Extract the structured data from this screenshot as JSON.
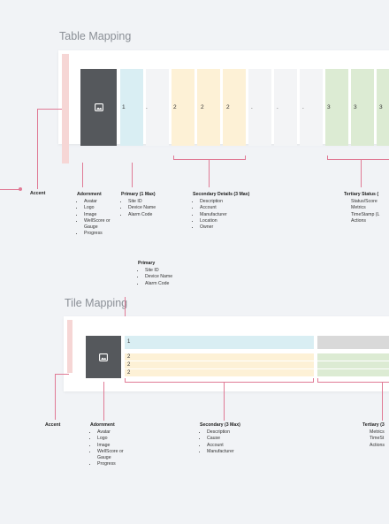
{
  "table_section": {
    "title": "Table Mapping",
    "cells": {
      "primary": "1",
      "blank_a": ".",
      "sec1": "2",
      "sec2": "2",
      "sec3": "2",
      "blank_b": ".",
      "blank_c": ".",
      "blank_d": ".",
      "ter1": "3",
      "ter2": "3",
      "ter3": "3"
    },
    "accent_label": "Accent",
    "adornment": {
      "title": "Adornment",
      "items": [
        "Avatar",
        "Logo",
        "Image",
        "WellScore or Gauge",
        "Progress"
      ]
    },
    "primary": {
      "title": "Primary (1 Max)",
      "items": [
        "Site ID",
        "Device Name",
        "Alarm Code"
      ]
    },
    "secondary": {
      "title": "Secondary Details (3 Max)",
      "items": [
        "Description",
        "Account",
        "Manufacturer",
        "Location",
        "Owner"
      ]
    },
    "tertiary": {
      "title": "Tertiary Status (",
      "items": [
        "Status/Score",
        "Metrics",
        "TimeStamp (L",
        "Actions"
      ]
    }
  },
  "tile_section": {
    "title": "Tile Mapping",
    "primary_label": {
      "title": "Primary",
      "items": [
        "Site ID",
        "Device Name",
        "Alarm Code"
      ]
    },
    "rows": {
      "primary": "1",
      "sec1": "2",
      "sec2": "2",
      "sec3": "2"
    },
    "accent_label": "Accent",
    "adornment": {
      "title": "Adornment",
      "items": [
        "Avatar",
        "Logo",
        "Image",
        "WellScore or Gauge",
        "Progress"
      ]
    },
    "secondary": {
      "title": "Secondary (3 Max)",
      "items": [
        "Description",
        "Cause",
        "Account",
        "Manufacturer"
      ]
    },
    "tertiary": {
      "title": "Tertiary (3",
      "items": [
        "Metrics",
        "TimeSt",
        "Actions"
      ]
    }
  },
  "colors": {
    "primary_fill": "#d9eef3",
    "secondary_fill": "#fdf1d6",
    "tertiary_fill": "#dcebd3",
    "blank_fill": "#f3f4f6",
    "accent_fill": "#f6d6d5",
    "adornment_fill": "#55585c",
    "connector": "#e07a95"
  }
}
